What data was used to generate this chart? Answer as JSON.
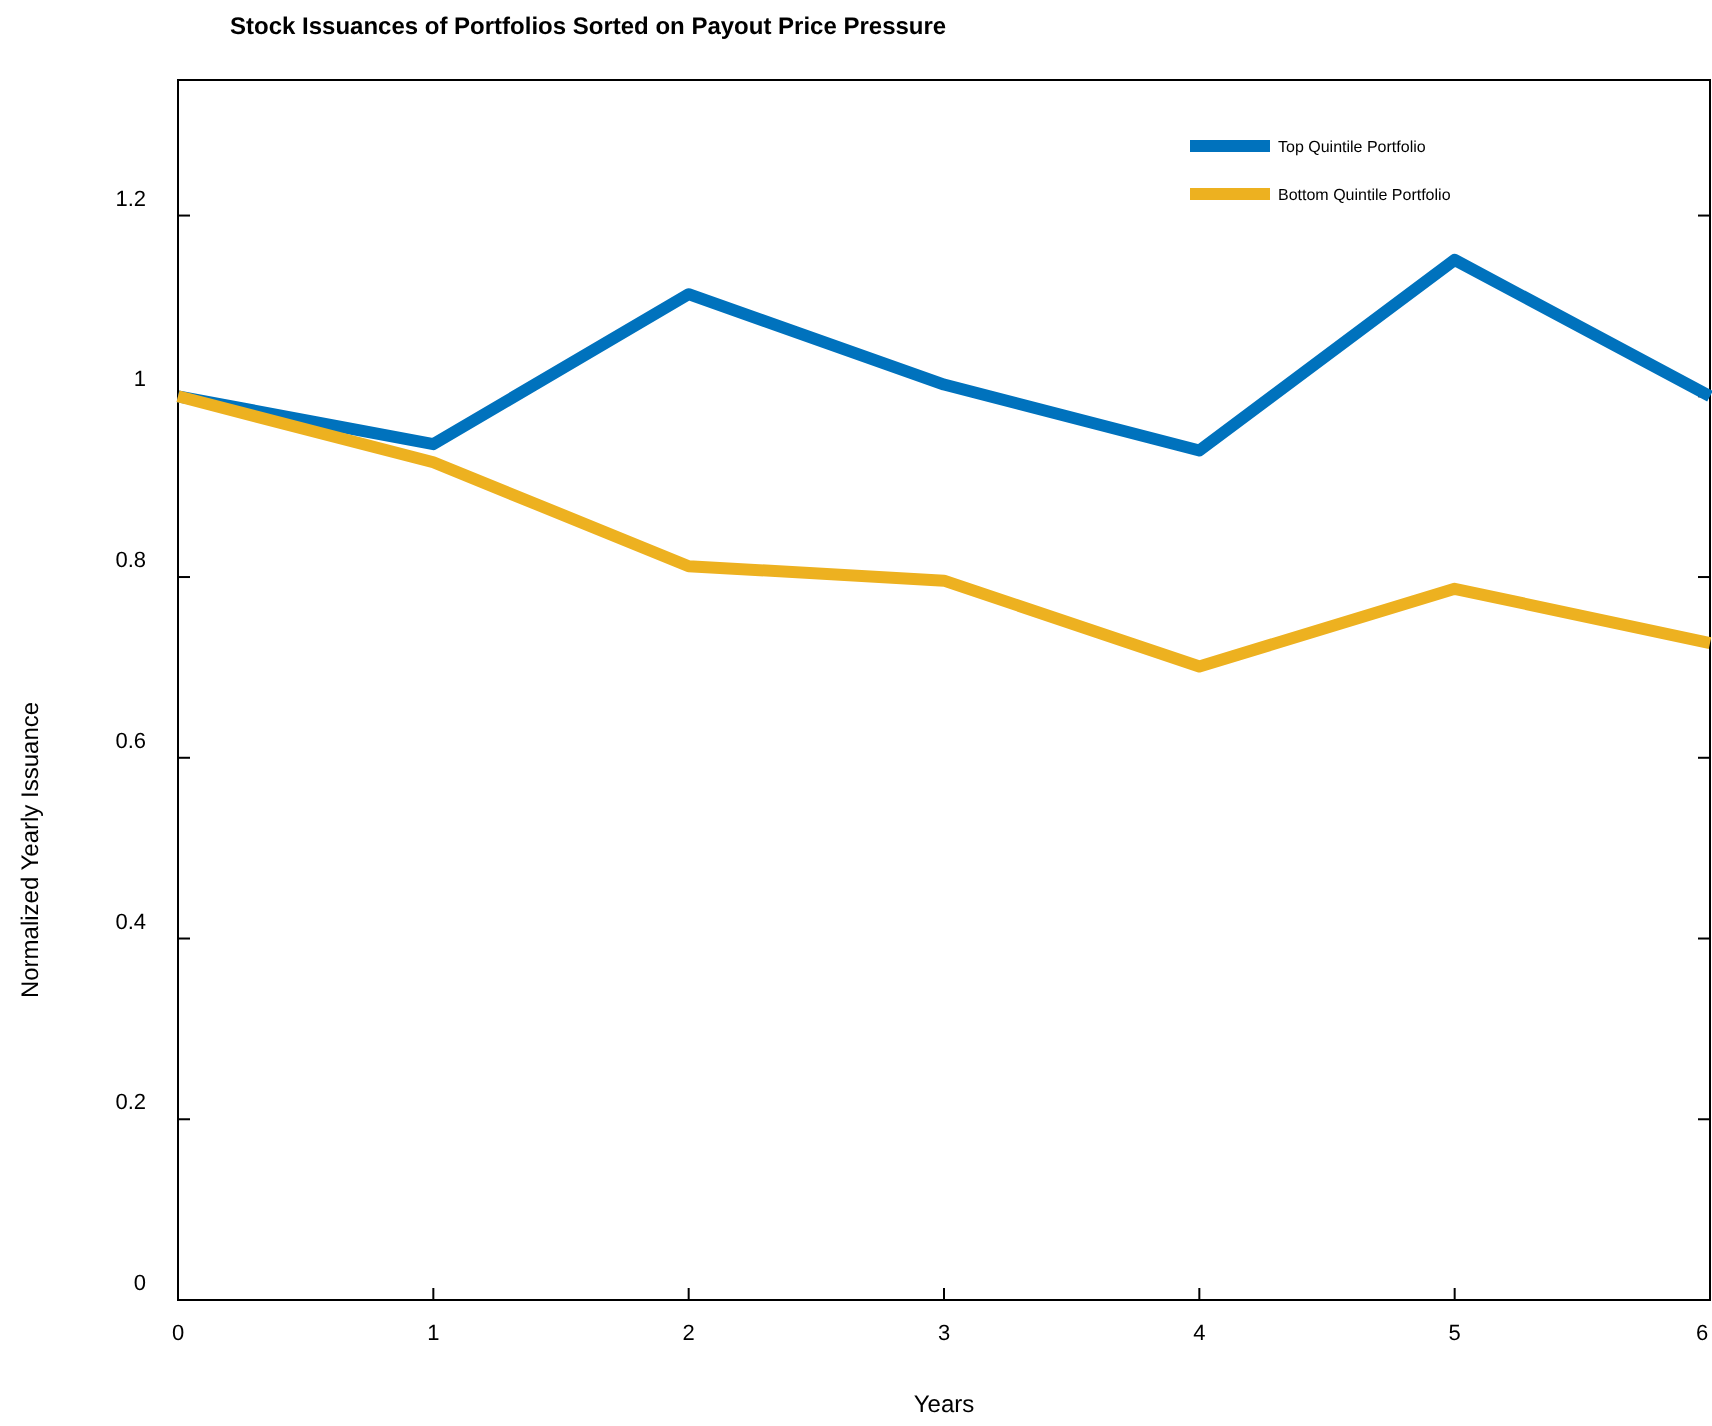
{
  "chart_data": {
    "type": "line",
    "title": "Stock Issuances of Portfolios Sorted on Payout Price Pressure",
    "xlabel": "Years",
    "ylabel": "Normalized Yearly Issuance",
    "x": [
      0,
      1,
      2,
      3,
      4,
      5,
      6
    ],
    "series": [
      {
        "name": "Top Quintile Portfolio",
        "color": "#0072bd",
        "values": [
          1.0,
          0.947,
          1.113,
          1.013,
          0.94,
          1.151,
          1.0
        ]
      },
      {
        "name": "Bottom Quintile Portfolio",
        "color": "#edb120",
        "values": [
          1.0,
          0.927,
          0.812,
          0.796,
          0.701,
          0.787,
          0.727
        ]
      }
    ],
    "xlim": [
      0,
      6
    ],
    "xticks": [
      0,
      1,
      2,
      3,
      4,
      5,
      6
    ],
    "ylim": [
      0,
      1.35
    ],
    "yticks": [
      0,
      0.2,
      0.4,
      0.6,
      0.8,
      1,
      1.2
    ],
    "grid": false,
    "legend": "top right",
    "marker": "none",
    "line_style": "solid"
  }
}
